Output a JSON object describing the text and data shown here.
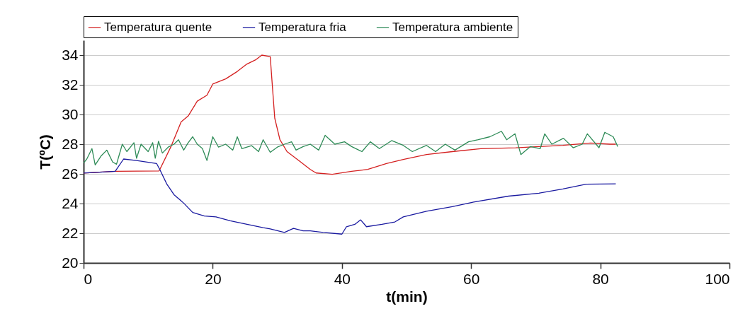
{
  "chart_data": {
    "type": "line",
    "xlabel": "t(min)",
    "ylabel": "T(ºC)",
    "xlim": [
      0,
      100
    ],
    "xticks": [
      0,
      20,
      40,
      60,
      80,
      100
    ],
    "ylim": [
      20,
      35
    ],
    "yticks": [
      20,
      22,
      24,
      26,
      28,
      30,
      32,
      34
    ],
    "grid": "y",
    "legend": "top",
    "marker": "none",
    "line_style": "solid",
    "series": [
      {
        "name": "Temperatura quente",
        "color": "#d42020",
        "x": [
          0,
          4.9,
          11.7,
          13.6,
          15.1,
          16.2,
          17.6,
          19.1,
          20,
          22,
          23.8,
          25.3,
          26.7,
          27.6,
          28.9,
          29.2,
          29.6,
          30.4,
          31.5,
          33.3,
          35.1,
          36,
          38.5,
          41.5,
          44,
          46.9,
          49.5,
          53.1,
          57.1,
          61.5,
          66.9,
          70.5,
          74.2,
          78.5,
          81.5,
          82.4
        ],
        "values": [
          26.05,
          26.17,
          26.2,
          27.9,
          29.5,
          29.9,
          30.9,
          31.3,
          32.05,
          32.4,
          32.9,
          33.4,
          33.7,
          34.0,
          33.9,
          32.1,
          29.75,
          28.3,
          27.5,
          26.9,
          26.3,
          26.06,
          25.97,
          26.17,
          26.3,
          26.7,
          26.97,
          27.3,
          27.5,
          27.7,
          27.76,
          27.84,
          27.92,
          28.08,
          28.0,
          28.0
        ]
      },
      {
        "name": "Temperatura fria",
        "color": "#1a1aa0",
        "x": [
          0,
          4.9,
          6.2,
          8.2,
          11.3,
          11.8,
          12.9,
          14,
          15.5,
          16.9,
          18.7,
          20.5,
          22.7,
          25.3,
          27.8,
          28.9,
          31.1,
          32.5,
          34,
          35.1,
          37.1,
          40,
          40.7,
          42,
          42.9,
          43.8,
          46.2,
          48.2,
          49.5,
          53.1,
          57.1,
          60.4,
          65.8,
          70.5,
          74.2,
          77.8,
          82.4
        ],
        "values": [
          26.05,
          26.17,
          27.0,
          26.9,
          26.7,
          26.3,
          25.3,
          24.6,
          24.03,
          23.4,
          23.16,
          23.1,
          22.84,
          22.6,
          22.37,
          22.29,
          22.05,
          22.33,
          22.16,
          22.16,
          22.05,
          21.94,
          22.44,
          22.6,
          22.9,
          22.44,
          22.6,
          22.76,
          23.1,
          23.48,
          23.79,
          24.1,
          24.5,
          24.7,
          24.98,
          25.3,
          25.33
        ]
      },
      {
        "name": "Temperatura ambiente",
        "color": "#2e8b57",
        "x": [
          0,
          0.5,
          1.3,
          1.8,
          2.7,
          3.6,
          4.5,
          5.1,
          6,
          6.7,
          7.8,
          8.2,
          8.9,
          10,
          10.7,
          11.1,
          11.6,
          12.2,
          13.1,
          14,
          14.7,
          15.5,
          16.2,
          16.9,
          17.6,
          18.4,
          19.1,
          20,
          20.9,
          22,
          23.1,
          23.8,
          24.5,
          26,
          27.1,
          27.8,
          28.9,
          30,
          31.1,
          32.2,
          32.9,
          34,
          35.1,
          36.4,
          37.4,
          38.9,
          40.4,
          41.5,
          43.1,
          44.4,
          45.8,
          47.7,
          49.5,
          50.9,
          53.1,
          54.5,
          56,
          57.5,
          59.6,
          61.1,
          62.9,
          64.7,
          65.5,
          66.8,
          67.7,
          69.2,
          70.7,
          71.4,
          72.5,
          74.3,
          75.8,
          77.2,
          78,
          79.8,
          80.7,
          82,
          82.7
        ],
        "values": [
          26.73,
          27.0,
          27.7,
          26.6,
          27.2,
          27.6,
          26.8,
          26.65,
          28.0,
          27.5,
          28.1,
          27.05,
          28.0,
          27.5,
          28.1,
          27.05,
          28.2,
          27.4,
          27.8,
          28.0,
          28.3,
          27.6,
          28.1,
          28.5,
          28.0,
          27.7,
          26.9,
          28.5,
          27.8,
          28.0,
          27.6,
          28.5,
          27.7,
          27.9,
          27.5,
          28.3,
          27.45,
          27.8,
          28.0,
          28.16,
          27.6,
          27.84,
          28.0,
          27.6,
          28.6,
          28.0,
          28.16,
          27.84,
          27.5,
          28.16,
          27.7,
          28.24,
          27.92,
          27.5,
          27.92,
          27.5,
          28.0,
          27.6,
          28.16,
          28.3,
          28.5,
          28.87,
          28.3,
          28.7,
          27.3,
          27.84,
          27.7,
          28.7,
          28.0,
          28.4,
          27.76,
          28.0,
          28.7,
          27.76,
          28.8,
          28.5,
          27.84
        ]
      }
    ]
  }
}
